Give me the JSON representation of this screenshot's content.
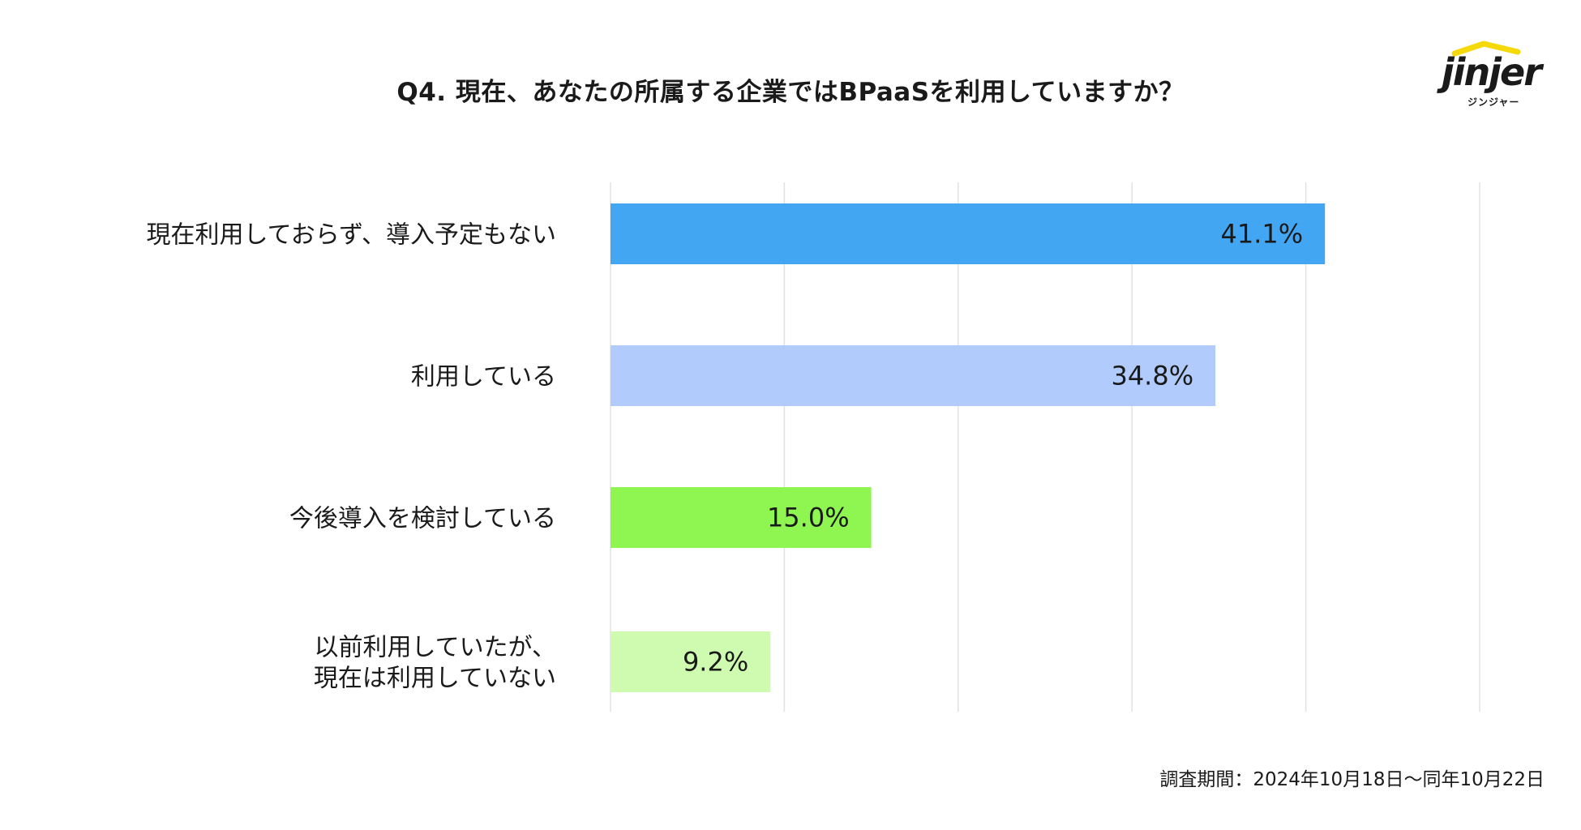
{
  "header": {
    "title": "Q4. 現在、あなたの所属する企業ではBPaaSを利用していますか？"
  },
  "logo": {
    "word": "jinjer",
    "sub": "ジンジャー",
    "roof_color": "#f5d90a"
  },
  "footer": {
    "note": "調査期間：2024年10月18日〜同年10月22日"
  },
  "chart_data": {
    "type": "bar",
    "orientation": "horizontal",
    "title": "Q4. 現在、あなたの所属する企業ではBPaaSを利用していますか？",
    "xlim": [
      0,
      50
    ],
    "grid": true,
    "categories": [
      [
        "現在利用しておらず、導入予定もない"
      ],
      [
        "利用している"
      ],
      [
        "今後導入を検討している"
      ],
      [
        "以前利用していたが、",
        "現在は利用していない"
      ]
    ],
    "values": [
      41.1,
      34.8,
      15.0,
      9.2
    ],
    "labels": [
      "41.1%",
      "34.8%",
      "15.0%",
      "9.2%"
    ],
    "colors": [
      "#43a6f3",
      "#b1cbfc",
      "#8ff550",
      "#cffbb1"
    ]
  }
}
